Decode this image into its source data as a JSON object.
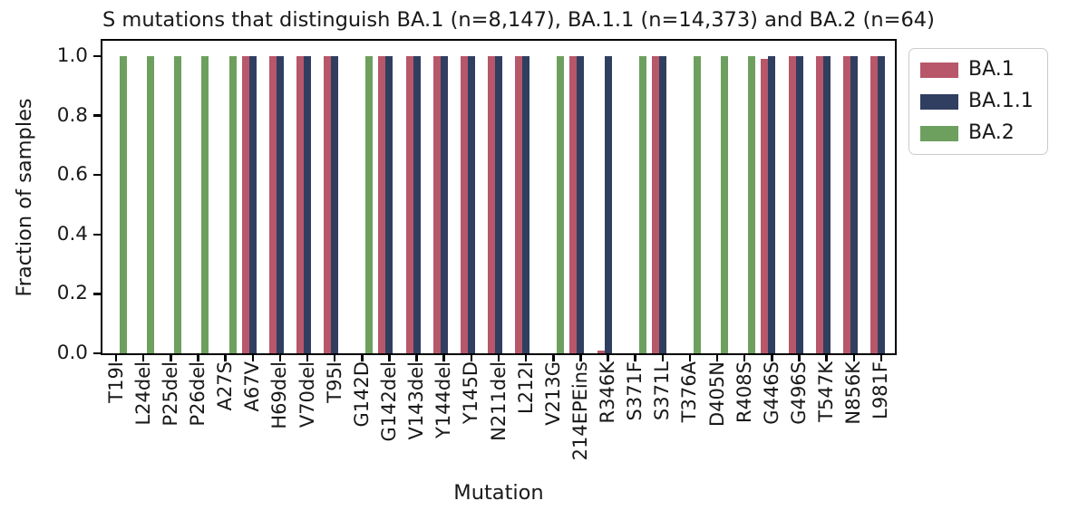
{
  "chart_data": {
    "type": "bar",
    "title": "S mutations that distinguish BA.1 (n=8,147), BA.1.1 (n=14,373) and BA.2 (n=64)",
    "xlabel": "Mutation",
    "ylabel": "Fraction of samples",
    "ylim": [
      0,
      1.05
    ],
    "grid": false,
    "legend_position": "upper right, outside plot",
    "yticks": [
      0.0,
      0.2,
      0.4,
      0.6,
      0.8,
      1.0
    ],
    "categories": [
      "T19I",
      "L24del",
      "P25del",
      "P26del",
      "A27S",
      "A67V",
      "H69del",
      "V70del",
      "T95I",
      "G142D",
      "G142del",
      "V143del",
      "Y144del",
      "Y145D",
      "N211del",
      "L212I",
      "V213G",
      "214EPEins",
      "R346K",
      "S371F",
      "S371L",
      "T376A",
      "D405N",
      "R408S",
      "G446S",
      "G496S",
      "T547K",
      "N856K",
      "L981F"
    ],
    "series": [
      {
        "name": "BA.1",
        "color": "#b75769",
        "values": [
          0,
          0,
          0,
          0,
          0,
          1,
          1,
          1,
          1,
          0,
          1,
          1,
          1,
          1,
          1,
          1,
          0,
          1,
          0.01,
          0,
          1,
          0,
          0,
          0,
          0.99,
          1,
          1,
          1,
          1
        ]
      },
      {
        "name": "BA.1.1",
        "color": "#303e60",
        "values": [
          0,
          0,
          0,
          0,
          0,
          1,
          1,
          1,
          1,
          0,
          1,
          1,
          1,
          1,
          1,
          1,
          0,
          1,
          1,
          0,
          1,
          0,
          0,
          0,
          1,
          1,
          1,
          1,
          1
        ]
      },
      {
        "name": "BA.2",
        "color": "#6da05e",
        "values": [
          1,
          1,
          1,
          1,
          1,
          0,
          0,
          0,
          0,
          1,
          0,
          0,
          0,
          0,
          0,
          0,
          1,
          0,
          0,
          1,
          0,
          1,
          1,
          1,
          0,
          0,
          0,
          0,
          0
        ]
      }
    ]
  }
}
